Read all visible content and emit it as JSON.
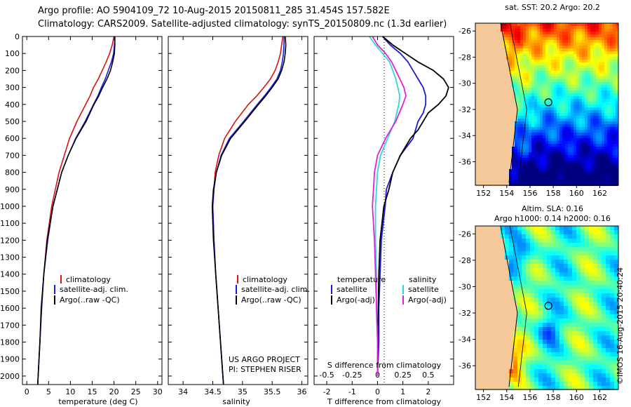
{
  "header": {
    "line1": "Argo profile: AO 5904109_72 10-Aug-2015 20150811_285 31.454S 157.582E",
    "line2": "Climatology: CARS2009. Satellite-adjusted climatology: synTS_20150809.nc (1.3d earlier)"
  },
  "credit": "©IMOS 16-Aug-2015 20:40:24",
  "colors": {
    "climatology": "#dd1111",
    "satellite": "#1a1adc",
    "argo": "#000000",
    "salinity_sat": "#33d6d6",
    "salinity_argo": "#e020e0"
  },
  "panel_labels": {
    "temperature_xlabel": "temperature (deg C)",
    "salinity_xlabel": "salinity",
    "diff_xlabel": "T difference from climatology",
    "diff_xlabel_top": "S difference from climatology"
  },
  "legends": {
    "profile": [
      "climatology",
      "satellite-adj. clim.",
      "Argo(..raw -QC)"
    ],
    "diff_titles": [
      "temperature",
      "salinity"
    ],
    "diff_temp": [
      "satellite",
      "Argo(-adj)"
    ],
    "diff_sal": [
      "satellite",
      "Argo(-adj)"
    ]
  },
  "project": {
    "line1": "US ARGO PROJECT",
    "line2": "PI: STEPHEN RISER"
  },
  "maps": {
    "sst_title": "sat. SST: 20.2 Argo: 20.2",
    "sla_title1": "Altim. SLA: 0.16",
    "sla_title2": "Argo h1000: 0.14 h2000: 0.16",
    "lat_ticks": [
      "-26",
      "-28",
      "-30",
      "-32",
      "-34",
      "-36"
    ],
    "lon_ticks": [
      "152",
      "154",
      "156",
      "158",
      "160",
      "162"
    ],
    "float_lon": 157.582,
    "float_lat": -31.454
  },
  "chart_data": [
    {
      "type": "line",
      "panel": "temperature",
      "xlabel": "temperature (deg C)",
      "ylabel": "",
      "xlim": [
        -1,
        31
      ],
      "ylim": [
        2050,
        0
      ],
      "xticks": [
        0,
        5,
        10,
        15,
        20,
        25,
        30
      ],
      "yticks": [
        0,
        100,
        200,
        300,
        400,
        500,
        600,
        700,
        800,
        900,
        1000,
        1100,
        1200,
        1300,
        1400,
        1500,
        1600,
        1700,
        1800,
        1900,
        2000
      ],
      "series": [
        {
          "name": "climatology",
          "depth": [
            0,
            50,
            100,
            150,
            200,
            250,
            300,
            350,
            400,
            500,
            600,
            700,
            800,
            1000,
            1200,
            1400,
            1600,
            1800,
            2000,
            2050
          ],
          "values": [
            20.0,
            19.6,
            19.0,
            18.2,
            17.3,
            16.4,
            15.3,
            14.5,
            13.5,
            11.5,
            9.8,
            8.6,
            7.4,
            5.7,
            4.6,
            3.9,
            3.4,
            3.0,
            2.6,
            2.5
          ]
        },
        {
          "name": "satellite-adj. clim.",
          "depth": [
            0,
            50,
            100,
            150,
            200,
            250,
            300,
            350,
            400,
            500,
            600,
            700,
            800,
            1000,
            1200,
            1400,
            1600,
            1800,
            2000,
            2050
          ],
          "values": [
            20.2,
            20.1,
            19.9,
            19.4,
            18.7,
            18.0,
            17.1,
            16.3,
            15.3,
            13.4,
            11.2,
            9.5,
            8.0,
            6.0,
            4.8,
            3.9,
            3.4,
            3.0,
            2.6,
            2.5
          ]
        },
        {
          "name": "Argo(..raw -QC)",
          "depth": [
            0,
            50,
            100,
            150,
            200,
            250,
            300,
            350,
            400,
            500,
            600,
            700,
            800,
            1000,
            1200,
            1400,
            1600,
            1800,
            2000,
            2050
          ],
          "values": [
            20.2,
            20.2,
            20.1,
            19.7,
            19.2,
            18.4,
            17.4,
            16.5,
            15.4,
            13.6,
            11.3,
            9.5,
            8.0,
            6.0,
            4.7,
            3.9,
            3.3,
            3.0,
            2.6,
            2.5
          ]
        }
      ]
    },
    {
      "type": "line",
      "panel": "salinity",
      "xlabel": "salinity",
      "ylabel": "",
      "xlim": [
        33.75,
        36.1
      ],
      "ylim": [
        2050,
        0
      ],
      "xticks": [
        34,
        34.5,
        35,
        35.5,
        36
      ],
      "series": [
        {
          "name": "climatology",
          "depth": [
            0,
            50,
            100,
            150,
            200,
            250,
            300,
            350,
            400,
            500,
            600,
            700,
            800,
            900,
            1000,
            1200,
            1400,
            1600,
            1800,
            2000,
            2050
          ],
          "values": [
            35.68,
            35.66,
            35.64,
            35.6,
            35.55,
            35.47,
            35.36,
            35.24,
            35.1,
            34.88,
            34.7,
            34.6,
            34.54,
            34.52,
            34.5,
            34.52,
            34.55,
            34.59,
            34.63,
            34.67,
            34.68
          ]
        },
        {
          "name": "satellite-adj. clim.",
          "depth": [
            0,
            50,
            100,
            150,
            200,
            250,
            300,
            350,
            400,
            500,
            600,
            700,
            800,
            900,
            1000,
            1200,
            1400,
            1600,
            1800,
            2000,
            2050
          ],
          "values": [
            35.7,
            35.7,
            35.69,
            35.67,
            35.64,
            35.58,
            35.48,
            35.37,
            35.25,
            35.02,
            34.78,
            34.64,
            34.56,
            34.52,
            34.5,
            34.52,
            34.55,
            34.59,
            34.63,
            34.67,
            34.68
          ]
        },
        {
          "name": "Argo(..raw -QC)",
          "depth": [
            0,
            50,
            100,
            150,
            200,
            250,
            300,
            350,
            400,
            500,
            600,
            700,
            800,
            900,
            1000,
            1200,
            1400,
            1600,
            1800,
            2000,
            2050
          ],
          "values": [
            35.72,
            35.73,
            35.72,
            35.7,
            35.66,
            35.6,
            35.5,
            35.39,
            35.27,
            35.04,
            34.8,
            34.65,
            34.56,
            34.51,
            34.49,
            34.51,
            34.55,
            34.59,
            34.63,
            34.67,
            34.68
          ]
        }
      ]
    },
    {
      "type": "line",
      "panel": "difference",
      "xlabel": "T difference from climatology",
      "xlabel_top": "S difference from climatology",
      "ylabel": "",
      "xlim": [
        -2.5,
        3.0
      ],
      "xticks": [
        -2,
        -1,
        0,
        1,
        2
      ],
      "s_xlim": [
        -0.625,
        0.75
      ],
      "s_xticks": [
        -0.5,
        -0.25,
        0,
        0.25,
        0.5
      ],
      "s_xtick_labels": [
        "-0.5",
        "-0.25",
        "0",
        "0.25",
        "0.5"
      ],
      "ylim": [
        2050,
        0
      ],
      "series": [
        {
          "name": "temperature satellite",
          "quantity": "T",
          "depth": [
            0,
            50,
            100,
            150,
            200,
            250,
            300,
            350,
            400,
            450,
            500,
            550,
            600,
            700,
            800,
            900,
            1000,
            1200,
            1400,
            1600,
            1800,
            2000
          ],
          "values": [
            0.2,
            0.5,
            0.9,
            1.2,
            1.4,
            1.6,
            1.8,
            1.9,
            1.9,
            1.8,
            1.6,
            1.5,
            1.4,
            0.9,
            0.6,
            0.35,
            0.3,
            0.15,
            0.1,
            0.05,
            0.05,
            0.0
          ]
        },
        {
          "name": "temperature Argo(-adj)",
          "quantity": "T",
          "depth": [
            0,
            50,
            100,
            150,
            200,
            250,
            300,
            350,
            400,
            450,
            500,
            550,
            600,
            700,
            800,
            900,
            1000,
            1200,
            1400,
            1600,
            1800,
            2000
          ],
          "values": [
            0.2,
            0.6,
            1.1,
            1.6,
            2.2,
            2.6,
            2.8,
            2.7,
            2.4,
            2.0,
            1.8,
            1.6,
            1.3,
            0.9,
            0.6,
            0.45,
            0.25,
            0.1,
            0.05,
            0.03,
            0.02,
            0.0
          ]
        },
        {
          "name": "salinity satellite",
          "quantity": "S",
          "depth": [
            0,
            50,
            100,
            150,
            200,
            250,
            300,
            350,
            400,
            500,
            600,
            700,
            800,
            900,
            1000,
            1200,
            1400,
            1600,
            1800,
            2000
          ],
          "values": [
            -0.08,
            -0.02,
            0.05,
            0.12,
            0.15,
            0.18,
            0.2,
            0.22,
            0.21,
            0.17,
            0.1,
            0.03,
            0.0,
            -0.01,
            -0.02,
            -0.02,
            -0.01,
            -0.01,
            0.0,
            0.0
          ]
        },
        {
          "name": "salinity Argo(-adj)",
          "quantity": "S",
          "depth": [
            0,
            50,
            100,
            150,
            200,
            250,
            300,
            350,
            400,
            500,
            600,
            700,
            800,
            900,
            1000,
            1200,
            1400,
            1600,
            1800,
            2000
          ],
          "values": [
            -0.05,
            0.0,
            0.08,
            0.14,
            0.18,
            0.22,
            0.26,
            0.28,
            0.25,
            0.18,
            0.08,
            0.0,
            -0.03,
            -0.04,
            -0.05,
            -0.03,
            -0.02,
            -0.01,
            0.0,
            0.0
          ]
        }
      ]
    }
  ]
}
